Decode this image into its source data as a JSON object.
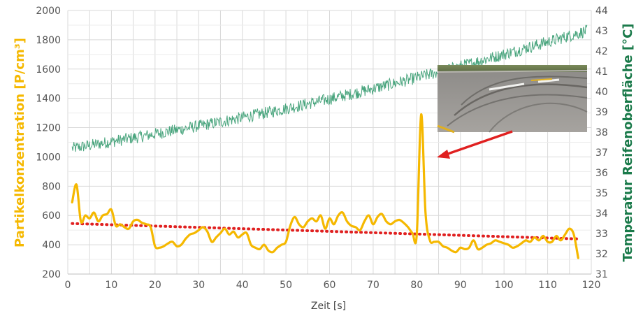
{
  "chart_data": {
    "type": "line",
    "title": "",
    "xlabel": "Zeit [s]",
    "ylabel_left": "Partikelkonzentration [P/cm³]",
    "ylabel_right": "Temperatur Reifenoberfläche [°C]",
    "xlim": [
      0,
      120
    ],
    "ylim_left": [
      200,
      2000
    ],
    "ylim_right": [
      31,
      44
    ],
    "x_ticks": [
      "0",
      "10",
      "20",
      "30",
      "40",
      "50",
      "60",
      "70",
      "80",
      "90",
      "100",
      "110",
      "120"
    ],
    "y_ticks_left": [
      "200",
      "400",
      "600",
      "800",
      "1000",
      "1200",
      "1400",
      "1600",
      "1800",
      "2000"
    ],
    "y_ticks_right": [
      "31",
      "32",
      "33",
      "34",
      "35",
      "36",
      "37",
      "38",
      "39",
      "40",
      "41",
      "42",
      "43",
      "44"
    ],
    "grid": true,
    "colors": {
      "particles": "#f5b800",
      "temperature": "#4aa57e",
      "trend": "#e02020",
      "arrow": "#e02020",
      "left_axis_title": "#f5b800",
      "right_axis_title": "#1a7a4a"
    },
    "series": [
      {
        "axis": "left",
        "x": [
          1,
          2,
          3,
          4,
          5,
          6,
          7,
          8,
          9,
          10,
          11,
          12,
          13,
          14,
          15,
          16,
          17,
          18,
          19,
          20,
          21,
          22,
          23,
          24,
          25,
          26,
          27,
          28,
          29,
          30,
          31,
          32,
          33,
          34,
          35,
          36,
          37,
          38,
          39,
          40,
          41,
          42,
          43,
          44,
          45,
          46,
          47,
          48,
          49,
          50,
          51,
          52,
          53,
          54,
          55,
          56,
          57,
          58,
          59,
          60,
          61,
          62,
          63,
          64,
          65,
          66,
          67,
          68,
          69,
          70,
          71,
          72,
          73,
          74,
          75,
          76,
          77,
          78,
          79,
          80,
          81,
          82,
          83,
          84,
          85,
          86,
          87,
          88,
          89,
          90,
          91,
          92,
          93,
          94,
          95,
          96,
          97,
          98,
          99,
          100,
          101,
          102,
          103,
          104,
          105,
          106,
          107,
          108,
          109,
          110,
          111,
          112,
          113,
          114,
          115,
          116,
          117
        ],
        "values": [
          690,
          810,
          560,
          600,
          580,
          620,
          560,
          600,
          610,
          640,
          530,
          540,
          520,
          510,
          560,
          570,
          550,
          540,
          520,
          390,
          380,
          390,
          410,
          420,
          390,
          400,
          440,
          470,
          480,
          500,
          520,
          490,
          420,
          450,
          480,
          510,
          470,
          490,
          450,
          470,
          480,
          400,
          380,
          370,
          400,
          360,
          350,
          380,
          400,
          420,
          530,
          590,
          540,
          520,
          560,
          580,
          560,
          600,
          510,
          580,
          540,
          600,
          620,
          560,
          530,
          520,
          500,
          560,
          600,
          540,
          590,
          610,
          560,
          540,
          560,
          570,
          550,
          520,
          480,
          470,
          1290,
          620,
          430,
          420,
          420,
          390,
          380,
          360,
          350,
          380,
          370,
          380,
          430,
          370,
          380,
          400,
          410,
          430,
          420,
          410,
          400,
          380,
          390,
          410,
          430,
          420,
          450,
          430,
          460,
          420,
          420,
          460,
          430,
          470,
          510,
          470,
          310
        ]
      },
      {
        "axis": "right",
        "trend_start": 37.2,
        "trend_end": 43.0,
        "x_range": [
          1,
          119
        ],
        "noise_amplitude": 0.3
      },
      {
        "axis": "left",
        "trend_line_from": [
          1,
          545
        ],
        "trend_line_to": [
          117,
          440
        ]
      }
    ],
    "annotations": [
      {
        "type": "inset-photo",
        "description": "road-surface-tire-marks"
      },
      {
        "type": "arrow",
        "points_to_x": 82,
        "points_to_value": 1290
      }
    ]
  }
}
